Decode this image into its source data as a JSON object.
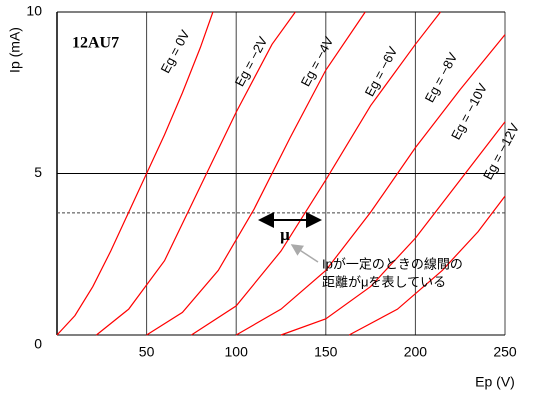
{
  "chart_data": {
    "type": "line",
    "title": "12AU7",
    "x_label": "Ep (V)",
    "y_label": "Ip (mA)",
    "xlim": [
      0,
      250
    ],
    "ylim": [
      0,
      10
    ],
    "xticks": [
      50,
      100,
      150,
      200,
      250
    ],
    "yticks": [
      0,
      5,
      10
    ],
    "grid": true,
    "dashed_level": 3.78,
    "annotations": [
      "μ",
      "Ipが一定のときの線間の",
      "距離がμを表している"
    ],
    "series": [
      {
        "name": "Eg = 0V",
        "color": "#ff0000",
        "x": [
          0,
          10,
          20,
          30,
          40,
          50,
          60,
          70,
          80,
          87
        ],
        "values": [
          0,
          0.6,
          1.5,
          2.6,
          3.8,
          5,
          6.2,
          7.5,
          8.9,
          10
        ]
      },
      {
        "name": "Eg = −2V",
        "color": "#ff0000",
        "x": [
          22,
          40,
          60,
          80,
          100,
          120,
          133
        ],
        "values": [
          0,
          0.8,
          2.3,
          4.6,
          6.9,
          9.0,
          10
        ]
      },
      {
        "name": "Eg = −4V",
        "color": "#ff0000",
        "x": [
          50,
          70,
          90,
          110,
          130,
          150,
          172
        ],
        "values": [
          0,
          0.7,
          2.0,
          3.9,
          6.1,
          8.2,
          10
        ]
      },
      {
        "name": "Eg = −6V",
        "color": "#ff0000",
        "x": [
          75,
          100,
          125,
          150,
          175,
          200,
          214
        ],
        "values": [
          0,
          0.9,
          2.6,
          4.8,
          7.1,
          9.0,
          10
        ]
      },
      {
        "name": "Eg = −8V",
        "color": "#ff0000",
        "x": [
          100,
          125,
          150,
          175,
          200,
          225,
          250
        ],
        "values": [
          0,
          0.8,
          2.0,
          3.8,
          5.8,
          7.6,
          9.3
        ]
      },
      {
        "name": "Eg = −10V",
        "color": "#ff0000",
        "x": [
          125,
          150,
          175,
          200,
          225,
          250
        ],
        "values": [
          0,
          0.5,
          1.5,
          3.0,
          4.8,
          6.6
        ]
      },
      {
        "name": "Eg = −12V",
        "color": "#ff0000",
        "x": [
          163,
          190,
          215,
          235,
          250
        ],
        "values": [
          0,
          0.8,
          2.0,
          3.2,
          4.3
        ]
      }
    ]
  }
}
